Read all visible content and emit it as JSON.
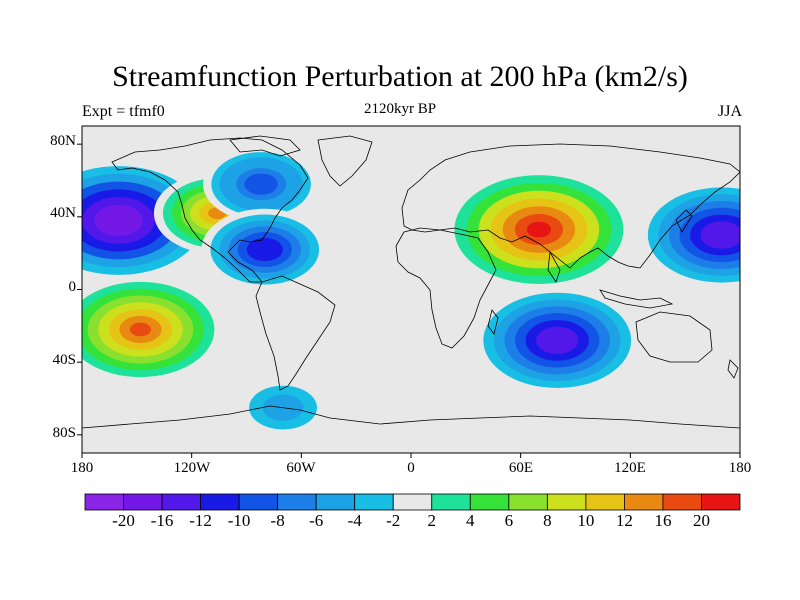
{
  "title": "Streamfunction Perturbation at 200 hPa (km2/s)",
  "subtitle_left": "Expt = tfmf0",
  "subtitle_center": "2120kyr BP",
  "subtitle_right": "JJA",
  "map": {
    "projection": "cylindrical-equidistant",
    "lon_range": [
      -180,
      180
    ],
    "lat_range": [
      -90,
      90
    ],
    "lat_ticks": [
      "80N",
      "40N",
      "0",
      "40S",
      "80S"
    ],
    "lon_ticks": [
      "180",
      "120W",
      "60W",
      "0",
      "60E",
      "120E",
      "180"
    ],
    "background_color": "#e8e8e8",
    "coastline_color": "#000000"
  },
  "colorbar": {
    "labels": [
      "-20",
      "-16",
      "-12",
      "-10",
      "-8",
      "-6",
      "-4",
      "-2",
      "2",
      "4",
      "6",
      "8",
      "10",
      "12",
      "16",
      "20"
    ],
    "colors": [
      "#8a24e6",
      "#7418e8",
      "#5218ea",
      "#1a1ae6",
      "#1254e6",
      "#1e7ee8",
      "#1ea2e6",
      "#18bee4",
      "#e8e8e8",
      "#1ee29a",
      "#34e23a",
      "#8ae02e",
      "#cce01e",
      "#e6c416",
      "#e88a12",
      "#e84a12",
      "#e61414"
    ]
  },
  "features": [
    {
      "name": "north-pacific-low",
      "value": -20,
      "lon": -160,
      "lat": 38
    },
    {
      "name": "south-pacific-high",
      "value": 16,
      "lon": -148,
      "lat": -22
    },
    {
      "name": "rockies-high",
      "value": 12,
      "lon": -106,
      "lat": 42
    },
    {
      "name": "canada-low",
      "value": -10,
      "lon": -82,
      "lat": 58
    },
    {
      "name": "caribbean-low",
      "value": -12,
      "lon": -80,
      "lat": 22
    },
    {
      "name": "tibetan-high",
      "value": 20,
      "lon": 70,
      "lat": 33
    },
    {
      "name": "indian-ocean-low",
      "value": -16,
      "lon": 80,
      "lat": -28
    },
    {
      "name": "west-pacific-low",
      "value": -16,
      "lon": 170,
      "lat": 30
    },
    {
      "name": "antarctic-low",
      "value": -6,
      "lon": -70,
      "lat": -65
    }
  ]
}
